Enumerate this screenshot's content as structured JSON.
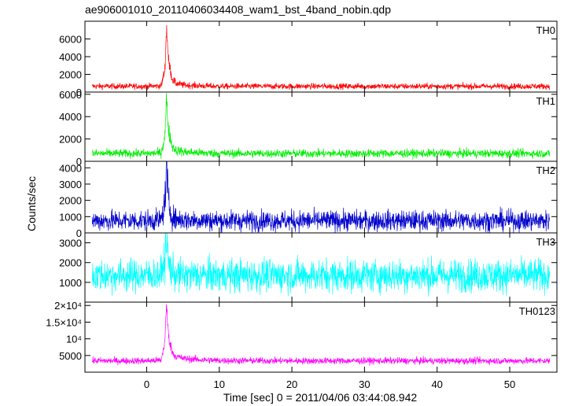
{
  "chart_data": {
    "type": "line",
    "title": "ae906001010_20110406034408_wam1_bst_4band_nobin.qdp",
    "xlabel": "Time [sec] 0 = 2011/04/06 03:44:08.942",
    "ylabel": "Counts/sec",
    "xlim": [
      -8.5,
      56.5
    ],
    "x_ticks": [
      0,
      10,
      20,
      30,
      40,
      50
    ],
    "x_tick_labels": [
      "0",
      "10",
      "20",
      "30",
      "40",
      "50"
    ],
    "grid": false,
    "legend": "none",
    "panels": [
      {
        "name": "TH0",
        "color": "#ff0000",
        "ylim": [
          0,
          8000
        ],
        "y_ticks": [
          0,
          2000,
          4000,
          6000
        ],
        "y_tick_labels": [
          "0",
          "2000",
          "4000",
          "6000"
        ],
        "baseline": 650,
        "noise": 170,
        "peak": 7300,
        "series": {
          "x": [
            -7.5,
            -5,
            -2.5,
            0,
            2,
            2.5,
            2.75,
            3,
            3.5,
            4,
            5,
            7.5,
            10,
            20,
            30,
            40,
            50,
            55.5
          ],
          "y": [
            650,
            650,
            650,
            650,
            700,
            2500,
            7300,
            3600,
            1500,
            1000,
            800,
            700,
            650,
            650,
            650,
            650,
            650,
            650
          ]
        }
      },
      {
        "name": "TH1",
        "color": "#00ee00",
        "ylim": [
          0,
          6200
        ],
        "y_ticks": [
          0,
          2000,
          4000,
          6000
        ],
        "y_tick_labels": [
          "0",
          "2000",
          "4000",
          "6000"
        ],
        "baseline": 700,
        "noise": 190,
        "peak": 5700,
        "series": {
          "x": [
            -7.5,
            -5,
            -2.5,
            0,
            2,
            2.5,
            2.75,
            3,
            3.5,
            4,
            5,
            7.5,
            10,
            20,
            30,
            40,
            50,
            55.5
          ],
          "y": [
            700,
            700,
            700,
            700,
            750,
            2200,
            5700,
            2800,
            1400,
            1000,
            850,
            750,
            700,
            700,
            700,
            700,
            700,
            700
          ]
        }
      },
      {
        "name": "TH2",
        "color": "#0000cc",
        "ylim": [
          0,
          4400
        ],
        "y_ticks": [
          0,
          1000,
          2000,
          3000,
          4000
        ],
        "y_tick_labels": [
          "0",
          "1000",
          "2000",
          "3000",
          "4000"
        ],
        "baseline": 750,
        "noise": 320,
        "peak": 4300,
        "series": {
          "x": [
            -7.5,
            -5,
            -2.5,
            0,
            2,
            2.5,
            2.75,
            3,
            3.5,
            4,
            5,
            10,
            20,
            30,
            40,
            50,
            55.5
          ],
          "y": [
            750,
            750,
            750,
            750,
            800,
            1800,
            4300,
            1800,
            1000,
            850,
            800,
            750,
            750,
            750,
            750,
            750,
            750
          ]
        }
      },
      {
        "name": "TH3",
        "color": "#00ffff",
        "ylim": [
          0,
          3500
        ],
        "y_ticks": [
          1000,
          2000,
          3000
        ],
        "y_tick_labels": [
          "1000",
          "2000",
          "3000"
        ],
        "baseline": 1350,
        "noise": 420,
        "peak": 3300,
        "series": {
          "x": [
            -7.5,
            -5,
            -2.5,
            0,
            2,
            2.5,
            2.75,
            3,
            3.5,
            4,
            5,
            10,
            20,
            30,
            40,
            50,
            55.5
          ],
          "y": [
            1350,
            1350,
            1350,
            1350,
            1400,
            2200,
            3300,
            2000,
            1500,
            1400,
            1350,
            1350,
            1350,
            1350,
            1350,
            1350,
            1350
          ]
        }
      },
      {
        "name": "TH0123",
        "color": "#ff00ff",
        "ylim": [
          0,
          21000
        ],
        "y_ticks": [
          5000,
          10000,
          15000,
          20000
        ],
        "y_tick_labels": [
          "5000",
          "10⁴",
          "1.5×10⁴",
          "2×10⁴"
        ],
        "baseline": 3400,
        "noise": 500,
        "peak": 20500,
        "series": {
          "x": [
            -7.5,
            -5,
            -2.5,
            0,
            2,
            2.5,
            2.75,
            3,
            3.5,
            4,
            5,
            7.5,
            10,
            20,
            30,
            40,
            50,
            55.5
          ],
          "y": [
            3400,
            3400,
            3400,
            3400,
            3600,
            9000,
            20500,
            11000,
            6000,
            4800,
            4100,
            3700,
            3500,
            3400,
            3400,
            3400,
            3400,
            3400
          ]
        }
      }
    ]
  }
}
